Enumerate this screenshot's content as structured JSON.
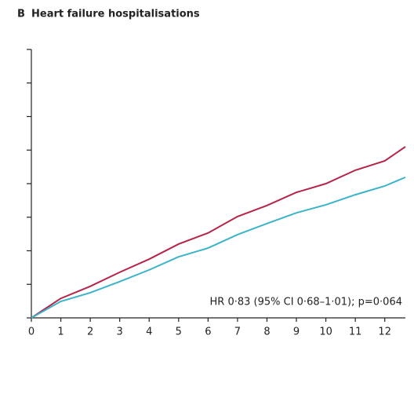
{
  "chart_data": {
    "type": "line",
    "panel_label": "B",
    "title": "Heart failure hospitalisations",
    "annotation": "HR 0·83 (95% CI 0·68–1·01); p=0·064",
    "x": [
      0,
      1,
      2,
      3,
      4,
      5,
      6,
      7,
      8,
      9,
      10,
      11,
      12,
      12.7
    ],
    "series": [
      {
        "color": "#b5254a",
        "values": [
          0,
          0.58,
          0.94,
          1.36,
          1.75,
          2.2,
          2.53,
          3.02,
          3.35,
          3.74,
          4.0,
          4.4,
          4.68,
          5.1
        ]
      },
      {
        "color": "#3bb3c9",
        "values": [
          0,
          0.49,
          0.75,
          1.08,
          1.43,
          1.82,
          2.08,
          2.48,
          2.81,
          3.13,
          3.37,
          3.67,
          3.93,
          4.19
        ]
      }
    ],
    "xlim": [
      0,
      12.7
    ],
    "xticks": [
      0,
      1,
      2,
      3,
      4,
      5,
      6,
      7,
      8,
      9,
      10,
      11,
      12
    ],
    "ylim": [
      0,
      8
    ],
    "yticks": [
      0,
      1,
      2,
      3,
      4,
      5,
      6,
      7,
      8
    ]
  }
}
